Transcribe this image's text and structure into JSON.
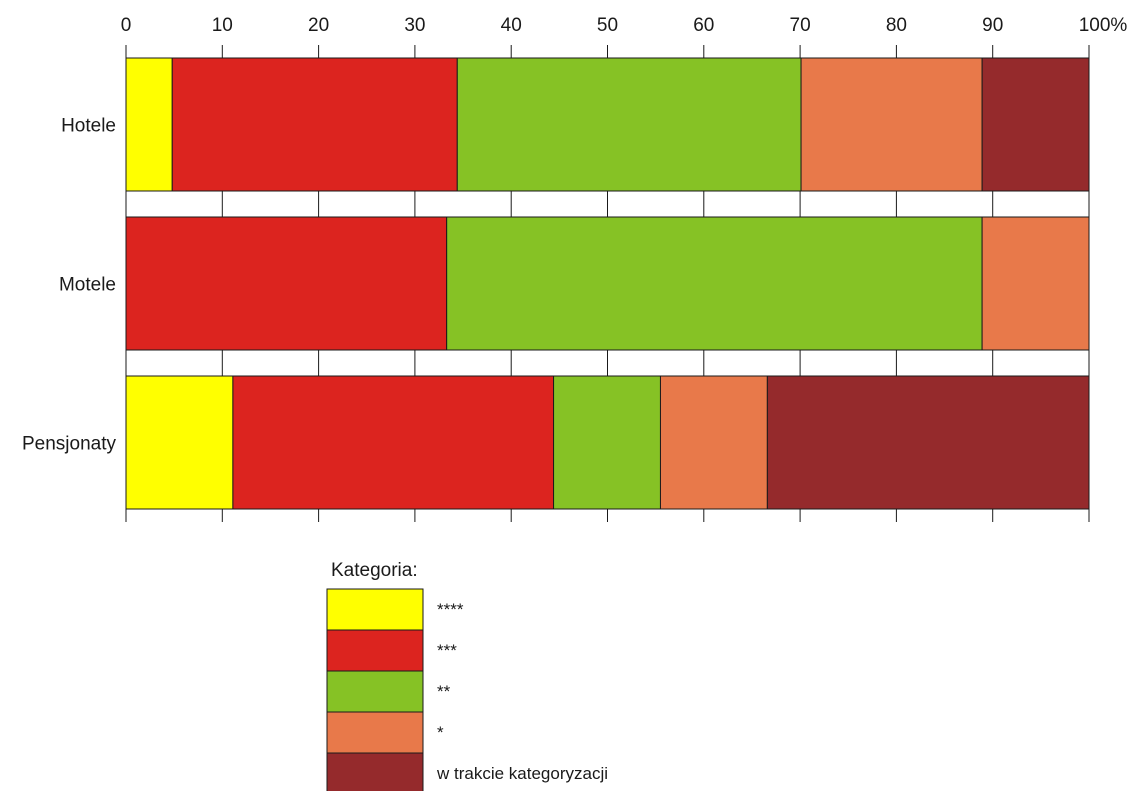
{
  "chart_data": {
    "type": "bar",
    "orientation": "horizontal",
    "stacked": true,
    "percent": true,
    "categories": [
      "Hotele",
      "Motele",
      "Pensjonaty"
    ],
    "xlim": [
      0,
      100
    ],
    "x_ticks": [
      "0",
      "10",
      "20",
      "30",
      "40",
      "50",
      "60",
      "70",
      "80",
      "90",
      "100%"
    ],
    "x_tick_values": [
      0,
      10,
      20,
      30,
      40,
      50,
      60,
      70,
      80,
      90,
      100
    ],
    "x_axis_position": "top",
    "grid": false,
    "legend_title": "Kategoria:",
    "legend_position": "bottom",
    "series": [
      {
        "name": "****",
        "color": "#ffff00",
        "values": [
          4.8,
          0,
          11.1
        ]
      },
      {
        "name": "***",
        "color": "#dc241f",
        "values": [
          29.6,
          33.3,
          33.3
        ]
      },
      {
        "name": "**",
        "color": "#86c225",
        "values": [
          35.7,
          55.6,
          11.1
        ]
      },
      {
        "name": "*",
        "color": "#e8794a",
        "values": [
          18.8,
          11.1,
          11.1
        ]
      },
      {
        "name": "w trakcie kategoryzacji",
        "color": "#952a2c",
        "values": [
          11.1,
          0,
          33.4
        ]
      }
    ]
  }
}
